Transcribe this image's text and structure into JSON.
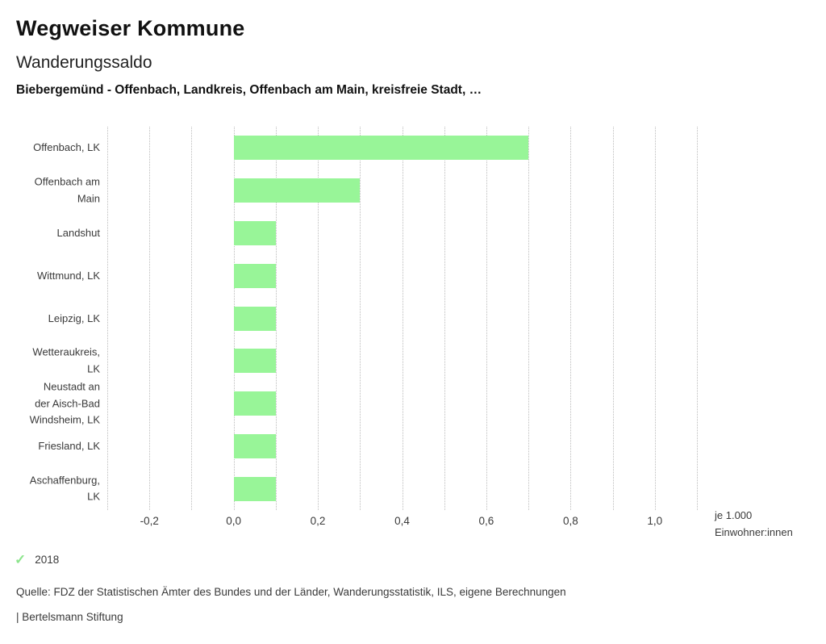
{
  "header": {
    "title": "Wegweiser Kommune",
    "subtitle": "Wanderungssaldo",
    "description": "Biebergemünd - Offenbach, Landkreis, Offenbach am Main, kreisfreie Stadt, …"
  },
  "chart_data": {
    "type": "bar",
    "orientation": "horizontal",
    "title": "Wanderungssaldo",
    "xlabel": "je 1.000 Einwohner:innen",
    "ylabel": "",
    "categories": [
      "Offenbach, LK",
      "Offenbach am Main",
      "Landshut",
      "Wittmund, LK",
      "Leipzig, LK",
      "Wetteraukreis, LK",
      "Neustadt an der Aisch-Bad Windsheim, LK",
      "Friesland, LK",
      "Aschaffenburg, LK"
    ],
    "category_lines": [
      [
        "Offenbach, LK"
      ],
      [
        "Offenbach am",
        "Main"
      ],
      [
        "Landshut"
      ],
      [
        "Wittmund, LK"
      ],
      [
        "Leipzig, LK"
      ],
      [
        "Wetteraukreis,",
        "LK"
      ],
      [
        "Neustadt an",
        "der Aisch-Bad",
        "Windsheim, LK"
      ],
      [
        "Friesland, LK"
      ],
      [
        "Aschaffenburg,",
        "LK"
      ]
    ],
    "series": [
      {
        "name": "2018",
        "values": [
          0.7,
          0.3,
          0.1,
          0.1,
          0.1,
          0.1,
          0.1,
          0.1,
          0.1
        ]
      }
    ],
    "xlim": [
      -0.3,
      1.1
    ],
    "grid_step": 0.1,
    "grid": true,
    "tick_values": [
      -0.2,
      0.0,
      0.2,
      0.4,
      0.6,
      0.8,
      1.0
    ],
    "tick_labels": [
      "-0,2",
      "0,0",
      "0,2",
      "0,4",
      "0,6",
      "0,8",
      "1,0"
    ],
    "unit_lines": [
      "je 1.000",
      "Einwohner:innen"
    ],
    "bar_color": "#98f598",
    "grid_color": "#bcbcbc",
    "legend_position": "bottom"
  },
  "legend": {
    "check_icon": "✓",
    "check_color": "#8de58d",
    "label": "2018"
  },
  "footer": {
    "source": "Quelle: FDZ der Statistischen Ämter des Bundes und der Länder, Wanderungsstatistik, ILS, eigene Berechnungen",
    "brand": "| Bertelsmann Stiftung"
  }
}
